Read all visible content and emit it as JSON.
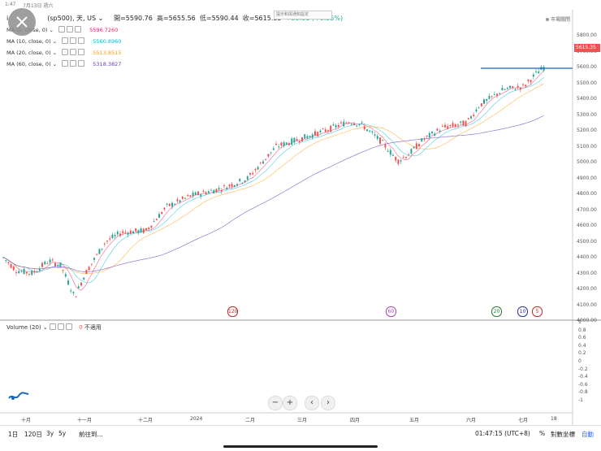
{
  "status_bar": {
    "time": "1:47",
    "date": "7月13日 週六"
  },
  "header": {
    "symbol": "(sp500), 天, US",
    "symbol_prefix": "i",
    "open_label": "開",
    "open_value": "=5590.76",
    "high_label": "高",
    "high_value": "=5655.56",
    "low_label": "低",
    "low_value": "=5590.44",
    "close_label": "收",
    "close_value": "=5615.35",
    "change": "+30.81 (+0.55%)",
    "tooltip": "提示和與通知設定",
    "market_status": "市場關閉"
  },
  "indicators": [
    {
      "label": "MA (5, close, 0)",
      "value": "5596.7260",
      "color": "#e91e63"
    },
    {
      "label": "MA (10, close, 0)",
      "value": "5560.8960",
      "color": "#00bcd4"
    },
    {
      "label": "MA (20, close, 0)",
      "value": "5513.8515",
      "color": "#ff9800"
    },
    {
      "label": "MA (60, close, 0)",
      "value": "5318.3827",
      "color": "#673ab7"
    }
  ],
  "price_axis": [
    "5800.00",
    "5700.00",
    "5600.00",
    "5500.00",
    "5400.00",
    "5300.00",
    "5200.00",
    "5100.00",
    "5000.00",
    "4900.00",
    "4800.00",
    "4700.00",
    "4600.00",
    "4500.00",
    "4400.00",
    "4300.00",
    "4200.00",
    "4100.00",
    "4000.00"
  ],
  "current_price_label": "5615.35",
  "volume": {
    "title": "Volume (20)",
    "value": "0",
    "status": "不適用",
    "axis": [
      "1",
      "0.8",
      "0.6",
      "0.4",
      "0.2",
      "0",
      "-0.2",
      "-0.4",
      "-0.6",
      "-0.8",
      "-1"
    ]
  },
  "time_axis": [
    "十月",
    "十一月",
    "十二月",
    "2024",
    "二月",
    "三月",
    "四月",
    "五月",
    "六月",
    "七月",
    "18"
  ],
  "events": [
    {
      "label": "120",
      "color": "#c62828"
    },
    {
      "label": "60",
      "color": "#ab47bc"
    },
    {
      "label": "20",
      "color": "#2e7d32"
    },
    {
      "label": "10",
      "color": "#283593"
    },
    {
      "label": "5",
      "color": "#c62828"
    }
  ],
  "nav": {
    "zoom_out": "−",
    "zoom_in": "+",
    "prev": "‹",
    "next": "›"
  },
  "bottom_bar": {
    "ranges": [
      "1日",
      "120日",
      "3y",
      "5y"
    ],
    "goto": "前往到...",
    "clock": "01:47:15 (UTC+8)",
    "percent": "%",
    "log": "對數坐標",
    "auto": "自動"
  },
  "colors": {
    "up": "#26a69a",
    "down": "#ef5350",
    "hline": "#1565c0"
  }
}
